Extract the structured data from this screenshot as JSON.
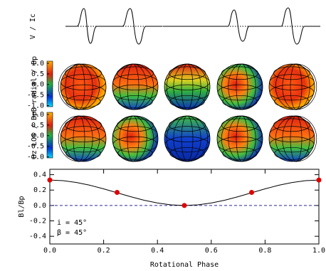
{
  "chart_data": [
    {
      "type": "profiles",
      "ylabel": "V / Ic"
    },
    {
      "type": "colorbar",
      "label": "B radial / Bp",
      "ylim": [
        -1.05,
        1.1
      ],
      "yticks": [
        {
          "value": 1,
          "label": "1.0"
        },
        0.5,
        {
          "value": 0,
          "label": "0.0"
        },
        -0.5,
        {
          "value": -1,
          "label": "-1.0"
        }
      ]
    },
    {
      "type": "colorbar",
      "label": "Bz LOS / Bp",
      "ylim": [
        -1.05,
        1.1
      ],
      "yticks": [
        {
          "value": 1,
          "label": "1.0"
        },
        0.5,
        {
          "value": 0,
          "label": "0.0"
        },
        -0.5,
        {
          "value": -1,
          "label": "-1.0"
        }
      ]
    },
    {
      "type": "line",
      "ylabel": "Bl/Bp",
      "xlabel": "Rotational Phase",
      "xlim": [
        0,
        1
      ],
      "ylim": [
        -0.5,
        0.47
      ],
      "xticks": [
        {
          "value": 0,
          "label": "0.0"
        },
        0.2,
        0.4,
        0.6,
        0.8,
        {
          "value": 1,
          "label": "1.0"
        }
      ],
      "yticks": [
        0.4,
        0.2,
        {
          "value": 0,
          "label": "0.0"
        },
        -0.2,
        -0.4
      ],
      "hline": 0,
      "hline_color": "#2a2aa0",
      "series": [
        {
          "color": "#000000",
          "style": "line",
          "x": [
            0,
            0.05,
            0.1,
            0.15,
            0.2,
            0.25,
            0.3,
            0.35,
            0.4,
            0.45,
            0.5,
            0.55,
            0.6,
            0.65,
            0.7,
            0.75,
            0.8,
            0.85,
            0.9,
            0.95,
            1
          ],
          "values": [
            0.33,
            0.322,
            0.298,
            0.262,
            0.216,
            0.165,
            0.114,
            0.068,
            0.032,
            0.008,
            0,
            0.008,
            0.032,
            0.068,
            0.114,
            0.165,
            0.216,
            0.262,
            0.298,
            0.322,
            0.33
          ]
        },
        {
          "color": "#e00000",
          "style": "markers",
          "x": [
            0,
            0.25,
            0.5,
            0.75,
            1
          ],
          "values": [
            0.33,
            0.17,
            0,
            0.17,
            0.33
          ]
        }
      ],
      "annotations": [
        "i = 45°",
        "β = 45°"
      ]
    }
  ]
}
